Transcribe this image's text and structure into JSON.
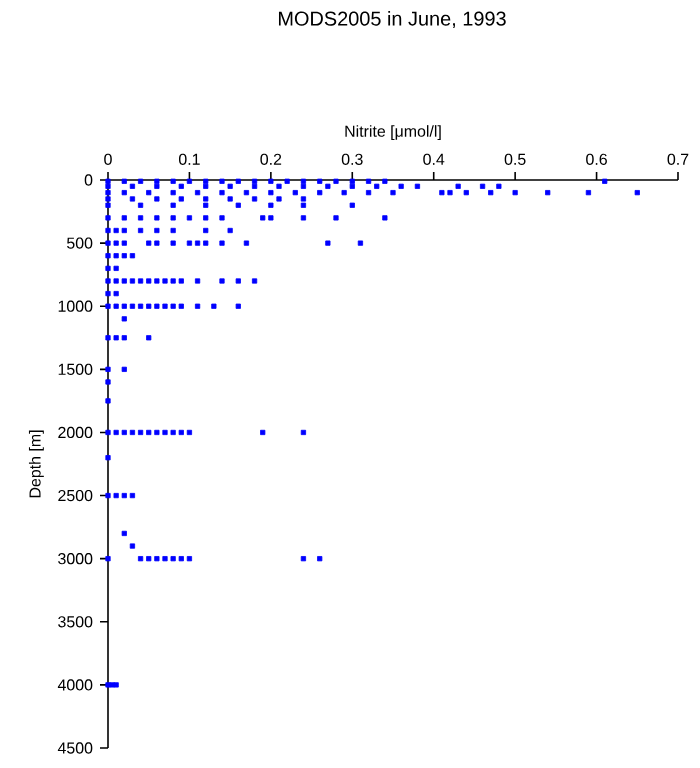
{
  "chart_data": {
    "type": "scatter",
    "title": "MODS2005 in June, 1993",
    "xlabel": "Nitrite [μmol/l]",
    "ylabel": "Depth [m]",
    "color": "#0000ff",
    "marker": "square",
    "x": [
      0,
      0.02,
      0.04,
      0.06,
      0.08,
      0.1,
      0.12,
      0.14,
      0.16,
      0.18,
      0.2,
      0.22,
      0.24,
      0.26,
      0.28,
      0.3,
      0.32,
      0.34,
      0.61,
      0,
      0.03,
      0.06,
      0.09,
      0.12,
      0.15,
      0.18,
      0.21,
      0.24,
      0.27,
      0.3,
      0.33,
      0.36,
      0.38,
      0.43,
      0.46,
      0.48,
      0,
      0.02,
      0.05,
      0.08,
      0.11,
      0.14,
      0.17,
      0.2,
      0.23,
      0.26,
      0.29,
      0.32,
      0.35,
      0.41,
      0.42,
      0.44,
      0.47,
      0.5,
      0.54,
      0.59,
      0.65,
      0,
      0.03,
      0.06,
      0.09,
      0.12,
      0.15,
      0.18,
      0.21,
      0.24,
      0,
      0.04,
      0.08,
      0.12,
      0.16,
      0.2,
      0.24,
      0.3,
      0,
      0.02,
      0.04,
      0.06,
      0.08,
      0.1,
      0.12,
      0.14,
      0.19,
      0.2,
      0.24,
      0.28,
      0.34,
      0,
      0.01,
      0.02,
      0.04,
      0.06,
      0.08,
      0.12,
      0.15,
      0,
      0.01,
      0.02,
      0.05,
      0.06,
      0.08,
      0.1,
      0.11,
      0.12,
      0.14,
      0.17,
      0.27,
      0.31,
      0,
      0.01,
      0.02,
      0.03,
      0,
      0.01,
      0,
      0.01,
      0.02,
      0.03,
      0.04,
      0.05,
      0.06,
      0.07,
      0.08,
      0.09,
      0.11,
      0.14,
      0.16,
      0.18,
      0,
      0.01,
      0,
      0.01,
      0.02,
      0.03,
      0.04,
      0.05,
      0.06,
      0.07,
      0.08,
      0.09,
      0.11,
      0.13,
      0.16,
      0.02,
      0,
      0.01,
      0.02,
      0.05,
      0,
      0.02,
      0,
      0,
      0,
      0.01,
      0.02,
      0.03,
      0.04,
      0.05,
      0.06,
      0.07,
      0.08,
      0.09,
      0.1,
      0.19,
      0.24,
      0,
      0,
      0.01,
      0.02,
      0.03,
      0.02,
      0.03,
      0,
      0.04,
      0.05,
      0.06,
      0.07,
      0.08,
      0.09,
      0.1,
      0.24,
      0.26,
      0,
      0.005,
      0.01
    ],
    "values": [
      10,
      10,
      10,
      10,
      10,
      10,
      10,
      10,
      10,
      10,
      10,
      10,
      10,
      10,
      10,
      10,
      10,
      10,
      10,
      50,
      50,
      50,
      50,
      50,
      50,
      50,
      50,
      50,
      50,
      50,
      50,
      50,
      50,
      50,
      50,
      50,
      100,
      100,
      100,
      100,
      100,
      100,
      100,
      100,
      100,
      100,
      100,
      100,
      100,
      100,
      100,
      100,
      100,
      100,
      100,
      100,
      100,
      150,
      150,
      150,
      150,
      150,
      150,
      150,
      150,
      150,
      200,
      200,
      200,
      200,
      200,
      200,
      200,
      200,
      300,
      300,
      300,
      300,
      300,
      300,
      300,
      300,
      300,
      300,
      300,
      300,
      300,
      400,
      400,
      400,
      400,
      400,
      400,
      400,
      400,
      500,
      500,
      500,
      500,
      500,
      500,
      500,
      500,
      500,
      500,
      500,
      500,
      500,
      600,
      600,
      600,
      600,
      700,
      700,
      800,
      800,
      800,
      800,
      800,
      800,
      800,
      800,
      800,
      800,
      800,
      800,
      800,
      800,
      900,
      900,
      1000,
      1000,
      1000,
      1000,
      1000,
      1000,
      1000,
      1000,
      1000,
      1000,
      1000,
      1000,
      1000,
      1100,
      1250,
      1250,
      1250,
      1250,
      1500,
      1500,
      1600,
      1750,
      2000,
      2000,
      2000,
      2000,
      2000,
      2000,
      2000,
      2000,
      2000,
      2000,
      2000,
      2000,
      2000,
      2200,
      2500,
      2500,
      2500,
      2500,
      2800,
      2900,
      3000,
      3000,
      3000,
      3000,
      3000,
      3000,
      3000,
      3000,
      3000,
      3000,
      4000,
      4000,
      4000
    ],
    "xlim": [
      0,
      0.7
    ],
    "xticks": [
      0,
      0.1,
      0.2,
      0.3,
      0.4,
      0.5,
      0.6,
      0.7
    ],
    "ylim": [
      4500,
      0
    ],
    "yticks": [
      0,
      500,
      1000,
      1500,
      2000,
      2500,
      3000,
      3500,
      4000,
      4500
    ]
  }
}
